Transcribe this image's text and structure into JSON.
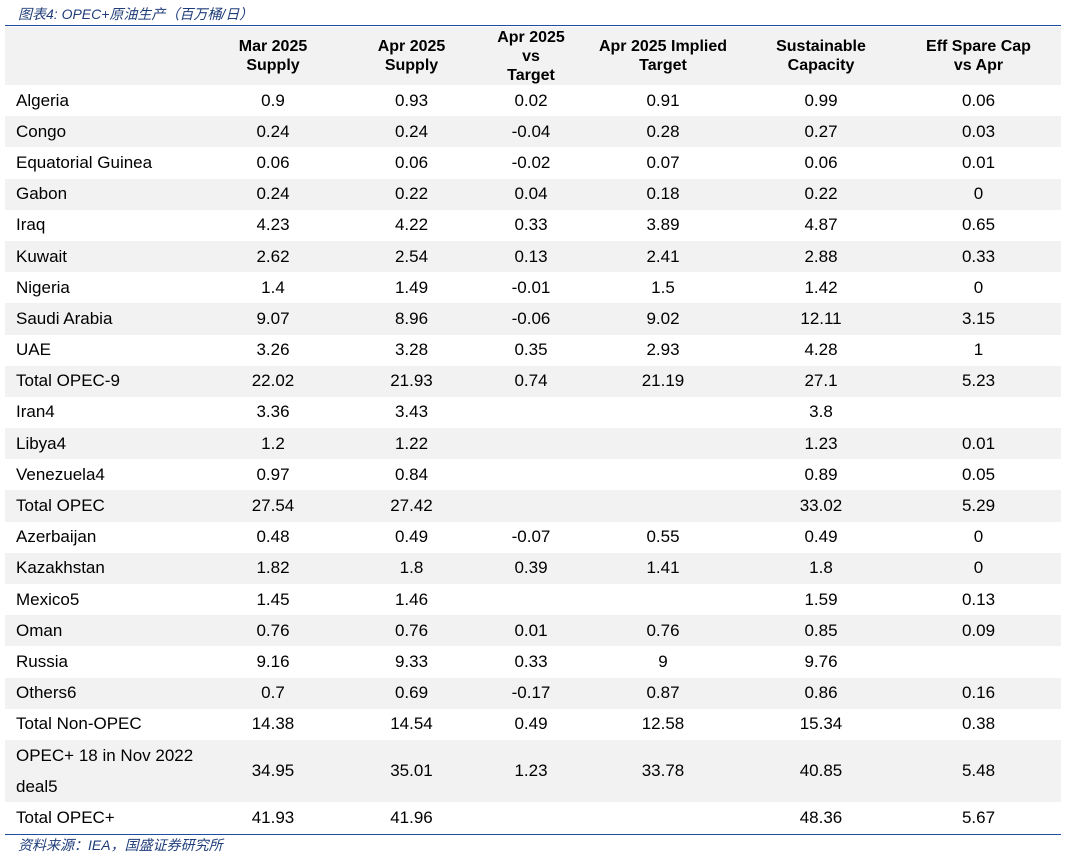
{
  "caption": "图表4:  OPEC+原油生产（百万桶/日）",
  "source": "资料来源：IEA，国盛证券研究所",
  "table": {
    "headers": [
      "",
      "Mar 2025\nSupply",
      "Apr 2025\nSupply",
      "Apr 2025\nvs\nTarget",
      "Apr 2025 Implied\nTarget",
      "Sustainable\nCapacity",
      "Eff Spare Cap\nvs Apr"
    ],
    "rows": [
      [
        "Algeria",
        "0.9",
        "0.93",
        "0.02",
        "0.91",
        "0.99",
        "0.06"
      ],
      [
        "Congo",
        "0.24",
        "0.24",
        "-0.04",
        "0.28",
        "0.27",
        "0.03"
      ],
      [
        "Equatorial Guinea",
        "0.06",
        "0.06",
        "-0.02",
        "0.07",
        "0.06",
        "0.01"
      ],
      [
        "Gabon",
        "0.24",
        "0.22",
        "0.04",
        "0.18",
        "0.22",
        "0"
      ],
      [
        "Iraq",
        "4.23",
        "4.22",
        "0.33",
        "3.89",
        "4.87",
        "0.65"
      ],
      [
        "Kuwait",
        "2.62",
        "2.54",
        "0.13",
        "2.41",
        "2.88",
        "0.33"
      ],
      [
        "Nigeria",
        "1.4",
        "1.49",
        "-0.01",
        "1.5",
        "1.42",
        "0"
      ],
      [
        "Saudi Arabia",
        "9.07",
        "8.96",
        "-0.06",
        "9.02",
        "12.11",
        "3.15"
      ],
      [
        "UAE",
        "3.26",
        "3.28",
        "0.35",
        "2.93",
        "4.28",
        "1"
      ],
      [
        "Total OPEC-9",
        "22.02",
        "21.93",
        "0.74",
        "21.19",
        "27.1",
        "5.23"
      ],
      [
        "Iran4",
        "3.36",
        "3.43",
        "",
        "",
        "3.8",
        ""
      ],
      [
        "Libya4",
        "1.2",
        "1.22",
        "",
        "",
        "1.23",
        "0.01"
      ],
      [
        "Venezuela4",
        "0.97",
        "0.84",
        "",
        "",
        "0.89",
        "0.05"
      ],
      [
        "Total OPEC",
        "27.54",
        "27.42",
        "",
        "",
        "33.02",
        "5.29"
      ],
      [
        "Azerbaijan",
        "0.48",
        "0.49",
        "-0.07",
        "0.55",
        "0.49",
        "0"
      ],
      [
        "Kazakhstan",
        "1.82",
        "1.8",
        "0.39",
        "1.41",
        "1.8",
        "0"
      ],
      [
        "Mexico5",
        "1.45",
        "1.46",
        "",
        "",
        "1.59",
        "0.13"
      ],
      [
        "Oman",
        "0.76",
        "0.76",
        "0.01",
        "0.76",
        "0.85",
        "0.09"
      ],
      [
        "Russia",
        "9.16",
        "9.33",
        "0.33",
        "9",
        "9.76",
        ""
      ],
      [
        "Others6",
        "0.7",
        "0.69",
        "-0.17",
        "0.87",
        "0.86",
        "0.16"
      ],
      [
        "Total Non-OPEC",
        "14.38",
        "14.54",
        "0.49",
        "12.58",
        "15.34",
        "0.38"
      ],
      [
        "OPEC+ 18 in Nov 2022 deal5",
        "34.95",
        "35.01",
        "1.23",
        "33.78",
        "40.85",
        "5.48"
      ],
      [
        "Total OPEC+",
        "41.93",
        "41.96",
        "",
        "",
        "48.36",
        "5.67"
      ]
    ]
  }
}
